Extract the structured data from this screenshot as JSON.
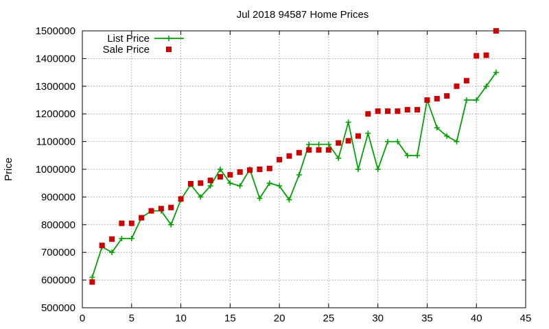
{
  "chart_data": {
    "type": "line",
    "title": "Jul 2018 94587 Home Prices",
    "xlabel": "",
    "ylabel": "Price",
    "xlim": [
      0,
      45
    ],
    "ylim": [
      500000,
      1500000
    ],
    "x_ticks": [
      "0",
      "5",
      "10",
      "15",
      "20",
      "25",
      "30",
      "35",
      "40",
      "45"
    ],
    "y_ticks": [
      "500000",
      "600000",
      "700000",
      "800000",
      "900000",
      "1000000",
      "1100000",
      "1200000",
      "1300000",
      "1400000",
      "1500000"
    ],
    "grid": true,
    "legend_position": "top-left",
    "series": [
      {
        "name": "List Price",
        "style": "line-plus",
        "color": "#00a000",
        "x": [
          1,
          2,
          3,
          4,
          5,
          6,
          7,
          8,
          9,
          10,
          11,
          12,
          13,
          14,
          15,
          16,
          17,
          18,
          19,
          20,
          21,
          22,
          23,
          24,
          25,
          26,
          27,
          28,
          29,
          30,
          31,
          32,
          33,
          34,
          35,
          36,
          37,
          38,
          39,
          40,
          41,
          42
        ],
        "y": [
          610000,
          720000,
          700000,
          750000,
          750000,
          825000,
          850000,
          850000,
          800000,
          890000,
          945000,
          900000,
          940000,
          1000000,
          950000,
          940000,
          1000000,
          895000,
          950000,
          940000,
          890000,
          980000,
          1090000,
          1090000,
          1090000,
          1040000,
          1170000,
          1000000,
          1130000,
          1000000,
          1100000,
          1100000,
          1050000,
          1050000,
          1250000,
          1150000,
          1120000,
          1100000,
          1250000,
          1250000,
          1300000,
          1350000
        ]
      },
      {
        "name": "Sale Price",
        "style": "square",
        "color": "#cc0000",
        "x": [
          1,
          2,
          3,
          4,
          5,
          6,
          7,
          8,
          9,
          10,
          11,
          12,
          13,
          14,
          15,
          16,
          17,
          18,
          19,
          20,
          21,
          22,
          23,
          24,
          25,
          26,
          27,
          28,
          29,
          30,
          31,
          32,
          33,
          34,
          35,
          36,
          37,
          38,
          39,
          40,
          41,
          42
        ],
        "y": [
          593000,
          725000,
          748000,
          805000,
          805000,
          825000,
          850000,
          858000,
          862000,
          893000,
          948000,
          950000,
          960000,
          973000,
          980000,
          990000,
          997000,
          1000000,
          1003000,
          1035000,
          1048000,
          1060000,
          1070000,
          1070000,
          1070000,
          1095000,
          1103000,
          1120000,
          1200000,
          1210000,
          1210000,
          1210000,
          1215000,
          1215000,
          1250000,
          1255000,
          1265000,
          1300000,
          1320000,
          1410000,
          1412000,
          1500000
        ]
      }
    ]
  }
}
